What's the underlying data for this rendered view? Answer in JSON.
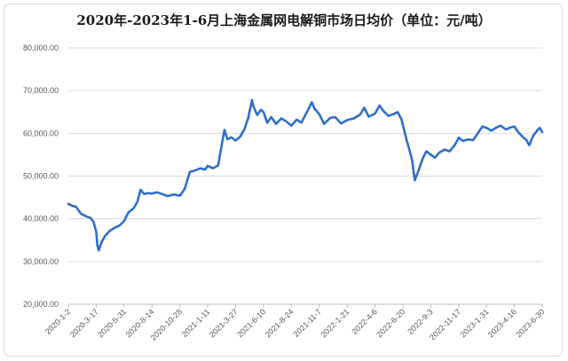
{
  "chart_data": {
    "type": "line",
    "title": "2020年-2023年1-6月上海金属网电解铜市场日均价（单位：元/吨）",
    "xlabel": "",
    "ylabel": "",
    "ylim": [
      20000,
      80000
    ],
    "yticks": [
      "20,000.00",
      "30,000.00",
      "40,000.00",
      "50,000.00",
      "60,000.00",
      "70,000.00",
      "80,000.00"
    ],
    "xticks": [
      "2020-1-2",
      "2020-3-17",
      "2020-5-31",
      "2020-8-14",
      "2020-10-28",
      "2021-1-11",
      "2021-3-27",
      "2021-6-10",
      "2021-8-24",
      "2021-11-7",
      "2022-1-21",
      "2022-4-6",
      "2022-6-20",
      "2022-9-3",
      "2022-11-17",
      "2023-1-31",
      "2023-4-16",
      "2023-6-30"
    ],
    "grid": "horizontal",
    "legend": "none",
    "line_color": "#2e6fc9",
    "series": [
      {
        "name": "",
        "points": [
          [
            "2020-01-02",
            43500
          ],
          [
            "2020-01-13",
            43000
          ],
          [
            "2020-01-23",
            42800
          ],
          [
            "2020-02-05",
            41200
          ],
          [
            "2020-02-18",
            40600
          ],
          [
            "2020-03-02",
            40200
          ],
          [
            "2020-03-10",
            39200
          ],
          [
            "2020-03-17",
            37000
          ],
          [
            "2020-03-20",
            33800
          ],
          [
            "2020-03-24",
            32600
          ],
          [
            "2020-03-31",
            34500
          ],
          [
            "2020-04-10",
            36000
          ],
          [
            "2020-04-24",
            37300
          ],
          [
            "2020-05-08",
            38000
          ],
          [
            "2020-05-20",
            38500
          ],
          [
            "2020-05-31",
            39500
          ],
          [
            "2020-06-12",
            41500
          ],
          [
            "2020-06-26",
            42500
          ],
          [
            "2020-07-06",
            44000
          ],
          [
            "2020-07-14",
            46800
          ],
          [
            "2020-07-24",
            45800
          ],
          [
            "2020-08-03",
            46000
          ],
          [
            "2020-08-14",
            45900
          ],
          [
            "2020-08-28",
            46200
          ],
          [
            "2020-09-10",
            45800
          ],
          [
            "2020-09-25",
            45300
          ],
          [
            "2020-10-12",
            45700
          ],
          [
            "2020-10-28",
            45400
          ],
          [
            "2020-11-10",
            47000
          ],
          [
            "2020-11-24",
            51000
          ],
          [
            "2020-12-08",
            51300
          ],
          [
            "2020-12-22",
            51800
          ],
          [
            "2021-01-04",
            51500
          ],
          [
            "2021-01-11",
            52400
          ],
          [
            "2021-01-25",
            51800
          ],
          [
            "2021-02-08",
            52500
          ],
          [
            "2021-02-18",
            57500
          ],
          [
            "2021-02-25",
            60800
          ],
          [
            "2021-03-05",
            58600
          ],
          [
            "2021-03-15",
            59100
          ],
          [
            "2021-03-27",
            58300
          ],
          [
            "2021-04-08",
            59200
          ],
          [
            "2021-04-20",
            61000
          ],
          [
            "2021-04-30",
            63600
          ],
          [
            "2021-05-10",
            67800
          ],
          [
            "2021-05-14",
            66300
          ],
          [
            "2021-05-24",
            64300
          ],
          [
            "2021-06-03",
            65500
          ],
          [
            "2021-06-10",
            65000
          ],
          [
            "2021-06-20",
            62500
          ],
          [
            "2021-07-01",
            63800
          ],
          [
            "2021-07-14",
            62200
          ],
          [
            "2021-07-28",
            63500
          ],
          [
            "2021-08-10",
            62800
          ],
          [
            "2021-08-24",
            61800
          ],
          [
            "2021-09-07",
            63200
          ],
          [
            "2021-09-20",
            62500
          ],
          [
            "2021-10-08",
            65500
          ],
          [
            "2021-10-18",
            67300
          ],
          [
            "2021-10-25",
            65800
          ],
          [
            "2021-11-07",
            64500
          ],
          [
            "2021-11-20",
            62200
          ],
          [
            "2021-12-06",
            63600
          ],
          [
            "2021-12-20",
            63800
          ],
          [
            "2022-01-05",
            62300
          ],
          [
            "2022-01-21",
            63100
          ],
          [
            "2022-02-08",
            63500
          ],
          [
            "2022-02-25",
            64400
          ],
          [
            "2022-03-08",
            66000
          ],
          [
            "2022-03-20",
            63900
          ],
          [
            "2022-04-06",
            64600
          ],
          [
            "2022-04-18",
            66500
          ],
          [
            "2022-04-29",
            65200
          ],
          [
            "2022-05-12",
            64100
          ],
          [
            "2022-05-26",
            64500
          ],
          [
            "2022-06-06",
            65000
          ],
          [
            "2022-06-16",
            63300
          ],
          [
            "2022-06-20",
            62000
          ],
          [
            "2022-06-30",
            58500
          ],
          [
            "2022-07-07",
            56300
          ],
          [
            "2022-07-15",
            53700
          ],
          [
            "2022-07-22",
            49000
          ],
          [
            "2022-08-02",
            51500
          ],
          [
            "2022-08-12",
            54000
          ],
          [
            "2022-08-22",
            55800
          ],
          [
            "2022-09-03",
            55000
          ],
          [
            "2022-09-14",
            54300
          ],
          [
            "2022-09-26",
            55500
          ],
          [
            "2022-10-10",
            56200
          ],
          [
            "2022-10-24",
            55800
          ],
          [
            "2022-11-07",
            57300
          ],
          [
            "2022-11-17",
            59000
          ],
          [
            "2022-11-29",
            58200
          ],
          [
            "2022-12-12",
            58600
          ],
          [
            "2022-12-26",
            58400
          ],
          [
            "2023-01-09",
            60200
          ],
          [
            "2023-01-20",
            61600
          ],
          [
            "2023-01-31",
            61300
          ],
          [
            "2023-02-13",
            60600
          ],
          [
            "2023-02-27",
            61400
          ],
          [
            "2023-03-10",
            61800
          ],
          [
            "2023-03-24",
            60900
          ],
          [
            "2023-04-06",
            61400
          ],
          [
            "2023-04-16",
            61600
          ],
          [
            "2023-04-26",
            60300
          ],
          [
            "2023-05-08",
            59200
          ],
          [
            "2023-05-18",
            58500
          ],
          [
            "2023-05-26",
            57200
          ],
          [
            "2023-06-05",
            59300
          ],
          [
            "2023-06-16",
            60600
          ],
          [
            "2023-06-23",
            61300
          ],
          [
            "2023-06-30",
            60300
          ]
        ]
      }
    ]
  }
}
